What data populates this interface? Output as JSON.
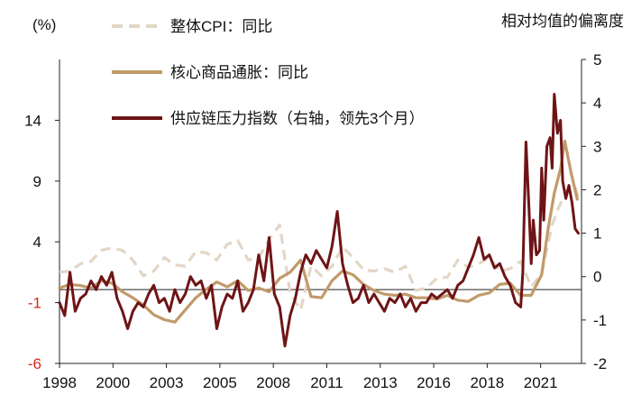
{
  "chart_data": {
    "type": "line",
    "left_axis_unit": "(%)",
    "right_axis_label": "相对均值的偏离度",
    "xlim": [
      1998,
      2022.9
    ],
    "ylim_left": [
      -6,
      19
    ],
    "ylim_right": [
      -2,
      5
    ],
    "xticks": [
      "1998",
      "2000",
      "2003",
      "2005",
      "2008",
      "2011",
      "2013",
      "2016",
      "2018",
      "2021"
    ],
    "xtick_pos": [
      1998,
      2000.55,
      2003.1,
      2005.65,
      2008.2,
      2010.75,
      2013.3,
      2015.85,
      2018.4,
      2020.95
    ],
    "yticks_left": [
      14,
      9,
      4,
      -1,
      -6
    ],
    "yticks_right": [
      5,
      4,
      3,
      2,
      1,
      0,
      -1,
      -2
    ],
    "legend_position": "top-left",
    "series": [
      {
        "name": "整体CPI：同比",
        "axis": "left",
        "color": "#e3d6c6",
        "dash": true,
        "x": [
          1998,
          1998.5,
          1999,
          1999.5,
          2000,
          2000.5,
          2001,
          2001.5,
          2002,
          2002.5,
          2003,
          2003.5,
          2004,
          2004.5,
          2005,
          2005.5,
          2006,
          2006.5,
          2007,
          2007.5,
          2008,
          2008.5,
          2009,
          2009.5,
          2010,
          2010.5,
          2011,
          2011.5,
          2012,
          2012.5,
          2013,
          2013.5,
          2014,
          2014.5,
          2015,
          2015.5,
          2016,
          2016.5,
          2017,
          2017.5,
          2018,
          2018.5,
          2019,
          2019.5,
          2020,
          2020.5,
          2021,
          2021.5,
          2021.8,
          2022,
          2022.3,
          2022.6,
          2022.8
        ],
        "values": [
          1.5,
          1.6,
          2.2,
          2.4,
          3.3,
          3.5,
          3.3,
          2.5,
          1.2,
          1.6,
          2.7,
          2.1,
          2.0,
          3.2,
          3.1,
          2.5,
          3.8,
          4.1,
          2.5,
          2.7,
          4.2,
          5.4,
          -0.2,
          -1.6,
          2.0,
          1.2,
          2.0,
          3.6,
          2.7,
          1.7,
          1.6,
          1.8,
          1.5,
          2.0,
          0.0,
          0.2,
          1.0,
          1.1,
          2.5,
          1.9,
          2.2,
          2.7,
          1.6,
          1.8,
          2.4,
          0.3,
          1.4,
          5.4,
          6.8,
          7.5,
          8.5,
          8.5,
          7.3
        ]
      },
      {
        "name": "核心商品通胀：同比",
        "axis": "left",
        "color": "#c19a6b",
        "dash": false,
        "x": [
          1998,
          1998.5,
          1999,
          1999.5,
          2000,
          2000.5,
          2001,
          2001.5,
          2002,
          2002.5,
          2003,
          2003.5,
          2004,
          2004.5,
          2005,
          2005.5,
          2006,
          2006.5,
          2007,
          2007.5,
          2008,
          2008.5,
          2009,
          2009.5,
          2010,
          2010.5,
          2011,
          2011.5,
          2012,
          2012.5,
          2013,
          2013.5,
          2014,
          2014.5,
          2015,
          2015.5,
          2016,
          2016.5,
          2017,
          2017.5,
          2018,
          2018.5,
          2019,
          2019.5,
          2020,
          2020.5,
          2021,
          2021.3,
          2021.6,
          2021.9,
          2022.1,
          2022.4,
          2022.7
        ],
        "values": [
          0.2,
          0.5,
          0.4,
          0.2,
          0.8,
          0.6,
          -0.1,
          -0.6,
          -1.2,
          -2.0,
          -2.4,
          -2.6,
          -1.6,
          -0.6,
          0.1,
          0.7,
          0.3,
          0.8,
          0.0,
          0.2,
          -0.1,
          1.0,
          1.5,
          2.5,
          -0.5,
          -0.6,
          0.8,
          1.6,
          1.3,
          0.5,
          0.0,
          -0.3,
          -0.4,
          -0.3,
          -0.6,
          -0.6,
          -0.7,
          -0.4,
          -0.8,
          -0.9,
          -0.4,
          -0.2,
          0.5,
          0.6,
          -0.4,
          -0.4,
          1.3,
          5.0,
          8.0,
          10.0,
          12.3,
          9.7,
          7.5
        ]
      },
      {
        "name": "供应链压力指数（右轴，领先3个月）",
        "axis": "right",
        "color": "#6e1416",
        "dash": false,
        "x": [
          1998,
          1998.25,
          1998.5,
          1998.75,
          1999,
          1999.25,
          1999.5,
          1999.75,
          2000,
          2000.25,
          2000.5,
          2000.75,
          2001,
          2001.25,
          2001.5,
          2001.75,
          2002,
          2002.25,
          2002.5,
          2002.75,
          2003,
          2003.25,
          2003.5,
          2003.75,
          2004,
          2004.25,
          2004.5,
          2004.75,
          2005,
          2005.25,
          2005.5,
          2005.75,
          2006,
          2006.25,
          2006.5,
          2006.75,
          2007,
          2007.25,
          2007.5,
          2007.75,
          2008,
          2008.25,
          2008.5,
          2008.75,
          2009,
          2009.25,
          2009.5,
          2009.75,
          2010,
          2010.25,
          2010.5,
          2010.75,
          2011,
          2011.25,
          2011.5,
          2011.75,
          2012,
          2012.25,
          2012.5,
          2012.75,
          2013,
          2013.25,
          2013.5,
          2013.75,
          2014,
          2014.25,
          2014.5,
          2014.75,
          2015,
          2015.25,
          2015.5,
          2015.75,
          2016,
          2016.25,
          2016.5,
          2016.75,
          2017,
          2017.25,
          2017.5,
          2017.75,
          2018,
          2018.25,
          2018.5,
          2018.75,
          2019,
          2019.25,
          2019.5,
          2019.75,
          2020,
          2020.1,
          2020.25,
          2020.4,
          2020.5,
          2020.6,
          2020.75,
          2020.9,
          2021,
          2021.1,
          2021.25,
          2021.4,
          2021.5,
          2021.6,
          2021.75,
          2021.9,
          2022,
          2022.15,
          2022.3,
          2022.45,
          2022.6,
          2022.75
        ],
        "values": [
          -0.6,
          -0.9,
          0.1,
          -0.8,
          -0.5,
          -0.4,
          -0.1,
          -0.3,
          0.0,
          -0.2,
          0.1,
          -0.5,
          -0.8,
          -1.2,
          -0.8,
          -0.6,
          -0.7,
          -0.4,
          -0.2,
          -0.6,
          -0.5,
          -0.8,
          -0.3,
          -0.6,
          -0.4,
          0.0,
          -0.2,
          -0.1,
          -0.5,
          -0.2,
          -1.2,
          -0.7,
          -0.4,
          -0.5,
          -0.1,
          -0.8,
          -0.6,
          -0.3,
          0.5,
          -0.1,
          0.9,
          -0.4,
          -0.7,
          -1.6,
          -0.9,
          -0.5,
          0.1,
          0.5,
          0.3,
          0.6,
          0.4,
          0.2,
          0.7,
          1.5,
          0.3,
          -0.2,
          -0.6,
          -0.5,
          -0.2,
          -0.6,
          -0.4,
          -0.6,
          -0.8,
          -0.5,
          -0.6,
          -0.4,
          -0.7,
          -0.5,
          -0.8,
          -0.6,
          -0.6,
          -0.4,
          -0.5,
          -0.4,
          -0.3,
          -0.5,
          -0.2,
          -0.1,
          0.2,
          0.5,
          0.9,
          0.4,
          0.5,
          0.2,
          0.3,
          0.0,
          -0.2,
          -0.6,
          -0.7,
          0.1,
          3.1,
          1.5,
          0.3,
          1.3,
          0.5,
          0.6,
          2.5,
          1.3,
          3.0,
          3.2,
          2.5,
          4.2,
          3.3,
          3.6,
          2.2,
          1.8,
          2.1,
          1.7,
          1.1,
          1.0
        ]
      }
    ]
  }
}
